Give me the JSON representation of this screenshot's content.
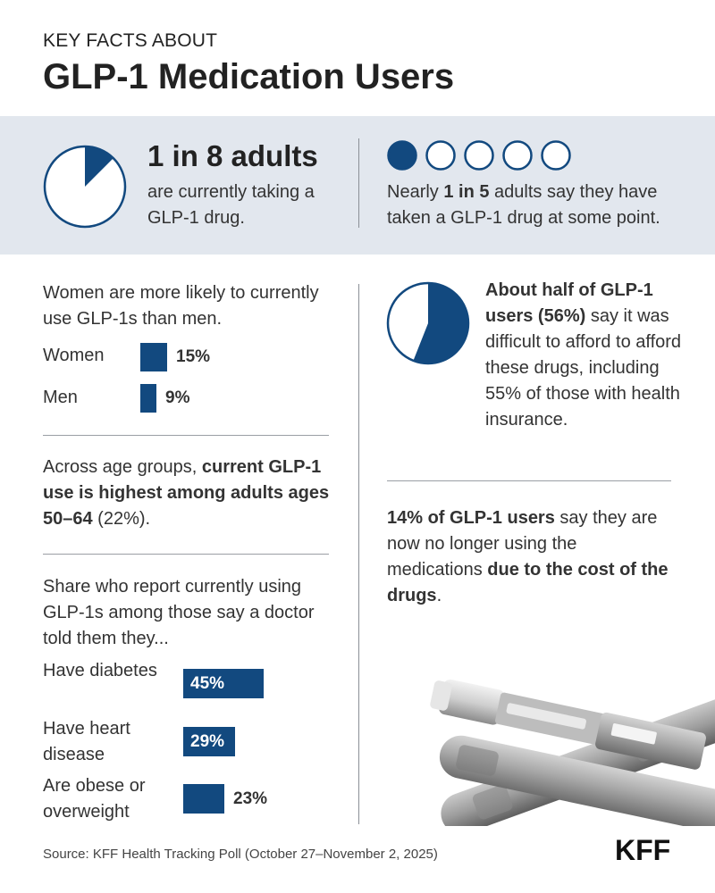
{
  "header": {
    "kicker": "KEY FACTS ABOUT",
    "title": "GLP-1 Medication Users"
  },
  "band": {
    "current": {
      "headline": "1 in 8 adults",
      "text": "are currently taking a GLP-1 drug.",
      "share": 0.125
    },
    "ever": {
      "pre": "Nearly ",
      "bold": "1 in 5",
      "post": " adults say they have taken a GLP-1 drug at some point.",
      "filled": 1,
      "total": 5
    }
  },
  "gender": {
    "intro": "Women are more likely to currently use GLP-1s than men.",
    "rows": [
      {
        "label": "Women",
        "value": 15,
        "display": "15%"
      },
      {
        "label": "Men",
        "value": 9,
        "display": "9%"
      }
    ]
  },
  "age": {
    "pre": "Across age groups, ",
    "bold": "current GLP-1 use is highest among adults ages 50–64",
    "post": " (22%)."
  },
  "conditions": {
    "intro": "Share who report currently using GLP-1s among those say a doctor told them they...",
    "rows": [
      {
        "label": "Have diabetes",
        "value": 45,
        "display": "45%"
      },
      {
        "label": "Have heart disease",
        "value": 29,
        "display": "29%"
      },
      {
        "label": "Are obese or overweight",
        "value": 23,
        "display": "23%"
      }
    ]
  },
  "afford": {
    "bold": "About half of GLP-1 users (56%)",
    "post": " say it was difficult to afford to afford these drugs, including 55% of those with health insurance.",
    "share": 0.56
  },
  "cost": {
    "bold1": "14% of GLP-1 users",
    "mid": " say they are now no longer using the medications ",
    "bold2": "due to the cost of the drugs",
    "post": "."
  },
  "footer": {
    "source": "Source: KFF Health Tracking Poll (October 27–November 2, 2025)",
    "logo": "KFF"
  },
  "colors": {
    "navy": "#12497f",
    "band": "#e2e7ee"
  }
}
